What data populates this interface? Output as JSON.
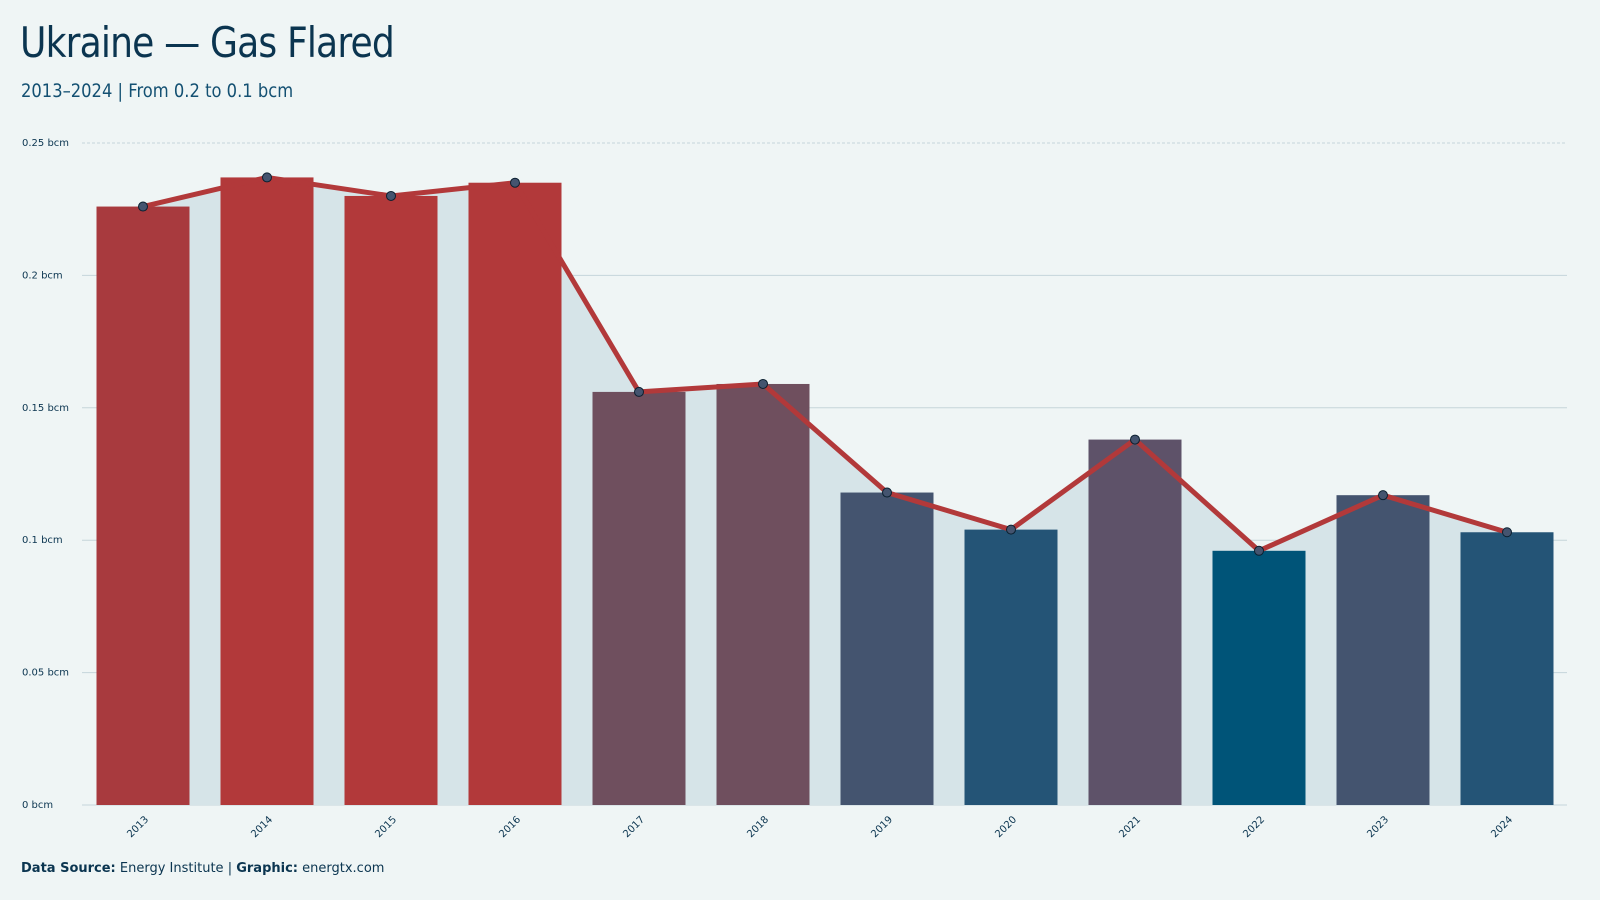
{
  "header": {
    "title": "Ukraine — Gas Flared",
    "subtitle": "2013–2024 | From 0.2 to 0.1 bcm"
  },
  "footer": {
    "source_label": "Data Source:",
    "source_value": "Energy Institute",
    "separator": "|",
    "graphic_label": "Graphic:",
    "graphic_value": "energtx.com"
  },
  "chart_data": {
    "type": "bar",
    "categories": [
      "2013",
      "2014",
      "2015",
      "2016",
      "2017",
      "2018",
      "2019",
      "2020",
      "2021",
      "2022",
      "2023",
      "2024"
    ],
    "values": [
      0.226,
      0.237,
      0.23,
      0.235,
      0.156,
      0.159,
      0.118,
      0.104,
      0.138,
      0.096,
      0.117,
      0.103
    ],
    "bar_colors": [
      "#a83a3e",
      "#b2393a",
      "#b2393a",
      "#b2393a",
      "#6f4f5e",
      "#6f4f5e",
      "#44546f",
      "#245476",
      "#5e5269",
      "#005478",
      "#44546f",
      "#245476"
    ],
    "line_overlay": true,
    "line_color": "#b2393a",
    "area_color": "#d6e4e8",
    "ylim": [
      0,
      0.25
    ],
    "yticks": [
      0,
      0.05,
      0.1,
      0.15,
      0.2,
      0.25
    ],
    "ytick_labels": [
      "0 bcm",
      "0.05 bcm",
      "0.1 bcm",
      "0.15 bcm",
      "0.2 bcm",
      "0.25 bcm"
    ],
    "grid": true,
    "xlabel": "",
    "ylabel": ""
  }
}
